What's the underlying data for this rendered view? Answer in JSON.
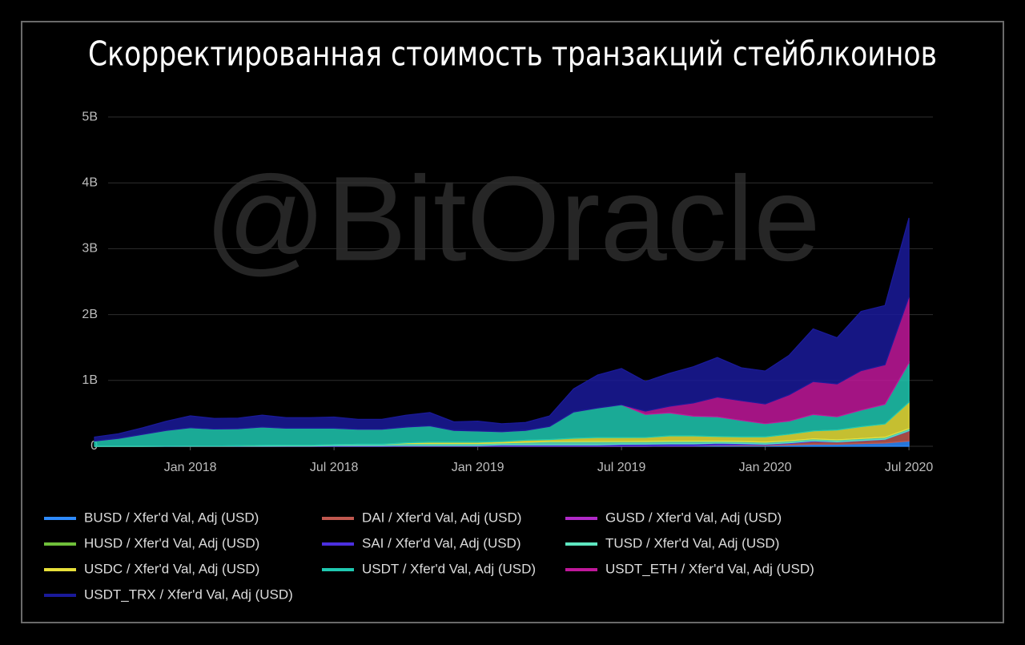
{
  "chart_data": {
    "type": "stacked-area",
    "title": "Скорректированная стоимость транзакций стейблкоинов",
    "watermark": "@BitOracle",
    "x": [
      "2017-09",
      "2017-10",
      "2017-11",
      "2017-12",
      "2018-01",
      "2018-02",
      "2018-03",
      "2018-04",
      "2018-05",
      "2018-06",
      "2018-07",
      "2018-08",
      "2018-09",
      "2018-10",
      "2018-11",
      "2018-12",
      "2019-01",
      "2019-02",
      "2019-03",
      "2019-04",
      "2019-05",
      "2019-06",
      "2019-07",
      "2019-08",
      "2019-09",
      "2019-10",
      "2019-11",
      "2019-12",
      "2020-01",
      "2020-02",
      "2020-03",
      "2020-04",
      "2020-05",
      "2020-06",
      "2020-07"
    ],
    "xlim": [
      "2017-09",
      "2020-08"
    ],
    "xticks": [
      {
        "value": "2018-01",
        "label": "Jan 2018"
      },
      {
        "value": "2018-07",
        "label": "Jul 2018"
      },
      {
        "value": "2019-01",
        "label": "Jan 2019"
      },
      {
        "value": "2019-07",
        "label": "Jul 2019"
      },
      {
        "value": "2020-01",
        "label": "Jan 2020"
      },
      {
        "value": "2020-07",
        "label": "Jul 2020"
      }
    ],
    "ylim": [
      0,
      5200000000.0
    ],
    "yticks": [
      0,
      {
        "value": 1000000000.0,
        "label": "1B"
      },
      {
        "value": 2000000000.0,
        "label": "2B"
      },
      {
        "value": 3000000000.0,
        "label": "3B"
      },
      {
        "value": 4000000000.0,
        "label": "4B"
      },
      {
        "value": 5000000000.0,
        "label": "5B"
      }
    ],
    "grid": true,
    "legend": "bottom",
    "series": [
      {
        "name": "BUSD / Xfer'd Val, Adj (USD)",
        "color": "#2e8bff",
        "values": [
          0,
          0,
          0,
          0,
          0,
          0,
          0,
          0,
          0,
          0,
          0,
          0,
          0,
          0,
          0,
          0,
          0,
          0,
          0,
          0,
          0,
          0,
          0,
          0,
          5000000.0,
          5000000.0,
          10000000.0,
          10000000.0,
          10000000.0,
          20000000.0,
          30000000.0,
          30000000.0,
          40000000.0,
          50000000.0,
          80000000.0
        ]
      },
      {
        "name": "DAI / Xfer'd Val, Adj (USD)",
        "color": "#c0584f",
        "values": [
          0,
          0,
          0,
          0,
          0,
          0,
          0,
          0,
          0,
          0,
          0,
          0,
          0,
          0,
          0,
          0,
          0,
          0,
          0,
          0,
          0,
          0,
          0,
          0,
          0,
          0,
          5000000.0,
          10000000.0,
          10000000.0,
          20000000.0,
          40000000.0,
          30000000.0,
          40000000.0,
          50000000.0,
          150000000.0
        ]
      },
      {
        "name": "GUSD / Xfer'd Val, Adj (USD)",
        "color": "#b12ac8",
        "values": [
          0,
          0,
          0,
          0,
          0,
          0,
          0,
          0,
          0,
          0,
          0,
          0,
          0,
          2000000.0,
          2000000.0,
          2000000.0,
          2000000.0,
          2000000.0,
          2000000.0,
          2000000.0,
          2000000.0,
          2000000.0,
          2000000.0,
          2000000.0,
          2000000.0,
          2000000.0,
          2000000.0,
          2000000.0,
          2000000.0,
          2000000.0,
          2000000.0,
          2000000.0,
          2000000.0,
          2000000.0,
          2000000.0
        ]
      },
      {
        "name": "HUSD / Xfer'd Val, Adj (USD)",
        "color": "#6fbf3a",
        "values": [
          0,
          0,
          0,
          0,
          0,
          0,
          0,
          0,
          0,
          0,
          0,
          0,
          0,
          0,
          0,
          0,
          0,
          0,
          0,
          0,
          0,
          0,
          0,
          1000000.0,
          1000000.0,
          1000000.0,
          1000000.0,
          1000000.0,
          1000000.0,
          1000000.0,
          1000000.0,
          1000000.0,
          1000000.0,
          1000000.0,
          1000000.0
        ]
      },
      {
        "name": "SAI / Xfer'd Val, Adj (USD)",
        "color": "#4b2fe0",
        "values": [
          0,
          0,
          0,
          1000000.0,
          2000000.0,
          3000000.0,
          3000000.0,
          3000000.0,
          5000000.0,
          5000000.0,
          10000000.0,
          10000000.0,
          10000000.0,
          10000000.0,
          10000000.0,
          10000000.0,
          10000000.0,
          20000000.0,
          20000000.0,
          20000000.0,
          20000000.0,
          20000000.0,
          30000000.0,
          30000000.0,
          30000000.0,
          30000000.0,
          30000000.0,
          20000000.0,
          10000000.0,
          10000000.0,
          10000000.0,
          5000000.0,
          5000000.0,
          5000000.0,
          5000000.0
        ]
      },
      {
        "name": "TUSD / Xfer'd Val, Adj (USD)",
        "color": "#5ee6c0",
        "values": [
          0,
          0,
          0,
          0,
          0,
          0,
          5000000.0,
          10000000.0,
          10000000.0,
          10000000.0,
          15000000.0,
          20000000.0,
          20000000.0,
          30000000.0,
          30000000.0,
          30000000.0,
          30000000.0,
          30000000.0,
          40000000.0,
          50000000.0,
          50000000.0,
          50000000.0,
          40000000.0,
          40000000.0,
          40000000.0,
          40000000.0,
          30000000.0,
          30000000.0,
          30000000.0,
          30000000.0,
          30000000.0,
          30000000.0,
          30000000.0,
          30000000.0,
          30000000.0
        ]
      },
      {
        "name": "USDC / Xfer'd Val, Adj (USD)",
        "color": "#e8e03a",
        "values": [
          0,
          0,
          0,
          0,
          0,
          0,
          0,
          0,
          0,
          0,
          0,
          0,
          0,
          10000000.0,
          20000000.0,
          20000000.0,
          20000000.0,
          20000000.0,
          30000000.0,
          30000000.0,
          50000000.0,
          60000000.0,
          60000000.0,
          60000000.0,
          80000000.0,
          80000000.0,
          70000000.0,
          70000000.0,
          80000000.0,
          100000000.0,
          120000000.0,
          150000000.0,
          180000000.0,
          200000000.0,
          400000000.0
        ]
      },
      {
        "name": "USDT / Xfer'd Val, Adj (USD)",
        "color": "#1fc8b0",
        "values": [
          80000000.0,
          120000000.0,
          180000000.0,
          240000000.0,
          280000000.0,
          260000000.0,
          260000000.0,
          280000000.0,
          260000000.0,
          260000000.0,
          250000000.0,
          230000000.0,
          230000000.0,
          240000000.0,
          250000000.0,
          180000000.0,
          170000000.0,
          150000000.0,
          150000000.0,
          200000000.0,
          400000000.0,
          450000000.0,
          500000000.0,
          350000000.0,
          350000000.0,
          300000000.0,
          300000000.0,
          250000000.0,
          200000000.0,
          200000000.0,
          250000000.0,
          200000000.0,
          250000000.0,
          300000000.0,
          600000000.0
        ]
      },
      {
        "name": "USDT_ETH / Xfer'd Val, Adj (USD)",
        "color": "#c0189a",
        "values": [
          0,
          0,
          0,
          0,
          0,
          0,
          0,
          0,
          0,
          0,
          0,
          0,
          0,
          0,
          0,
          0,
          0,
          0,
          0,
          0,
          0,
          0,
          0,
          50000000.0,
          100000000.0,
          200000000.0,
          300000000.0,
          300000000.0,
          300000000.0,
          400000000.0,
          500000000.0,
          500000000.0,
          600000000.0,
          600000000.0,
          1000000000.0
        ]
      },
      {
        "name": "USDT_TRX / Xfer'd Val, Adj (USD)",
        "color": "#1a1a9a",
        "values": [
          60000000.0,
          70000000.0,
          100000000.0,
          140000000.0,
          180000000.0,
          160000000.0,
          160000000.0,
          180000000.0,
          160000000.0,
          160000000.0,
          170000000.0,
          150000000.0,
          150000000.0,
          180000000.0,
          200000000.0,
          130000000.0,
          150000000.0,
          120000000.0,
          120000000.0,
          160000000.0,
          350000000.0,
          500000000.0,
          550000000.0,
          450000000.0,
          500000000.0,
          550000000.0,
          600000000.0,
          500000000.0,
          500000000.0,
          600000000.0,
          800000000.0,
          700000000.0,
          900000000.0,
          900000000.0,
          1200000000.0
        ]
      }
    ]
  }
}
